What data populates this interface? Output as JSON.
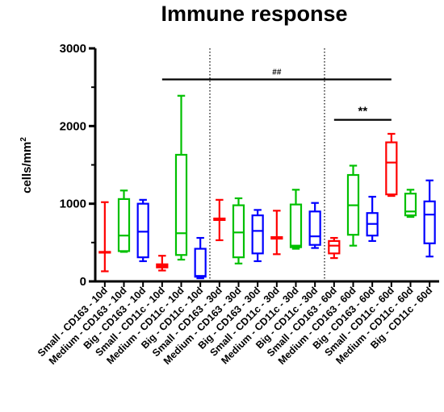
{
  "chart_data": {
    "type": "box",
    "title": "Immune response",
    "xlabel": "",
    "ylabel": "cells/mm",
    "ylabel_superscript": "2",
    "ylim": [
      0,
      3000
    ],
    "yticks": [
      0,
      1000,
      2000,
      3000
    ],
    "grid": false,
    "legend": "none",
    "group_separators_after": [
      5,
      11
    ],
    "colors": {
      "Small": "#ff0000",
      "Medium": "#00c000",
      "Big": "#0000ff"
    },
    "categories": [
      "Small - CD163 - 10d",
      "Medium - CD163 - 10d",
      "Big - CD163 - 10d",
      "Small - CD11c - 10d",
      "Medium - CD11c - 10d",
      "Big - CD11c - 10d",
      "Small - CD163 - 30d",
      "Medium - CD163 - 30d",
      "Big - CD163 - 30d",
      "Small - CD11c - 30d",
      "Medium - CD11c - 30d",
      "Big - CD11c - 30d",
      "Small - CD163 - 60d",
      "Medium - CD163 - 60d",
      "Big - CD163 - 60d",
      "Small - CD11c - 60d",
      "Medium - CD11c - 60d",
      "Big - CD11c - 60d"
    ],
    "boxes": [
      {
        "size": "Small",
        "min": 130,
        "q1": 370,
        "median": 375,
        "q3": 380,
        "max": 1020
      },
      {
        "size": "Medium",
        "min": 380,
        "q1": 390,
        "median": 590,
        "q3": 1060,
        "max": 1170
      },
      {
        "size": "Big",
        "min": 260,
        "q1": 310,
        "median": 640,
        "q3": 1000,
        "max": 1050
      },
      {
        "size": "Small",
        "min": 140,
        "q1": 180,
        "median": 200,
        "q3": 220,
        "max": 330
      },
      {
        "size": "Medium",
        "min": 280,
        "q1": 340,
        "median": 620,
        "q3": 1630,
        "max": 2390
      },
      {
        "size": "Big",
        "min": 40,
        "q1": 60,
        "median": 70,
        "q3": 420,
        "max": 560
      },
      {
        "size": "Small",
        "min": 530,
        "q1": 790,
        "median": 800,
        "q3": 810,
        "max": 1050
      },
      {
        "size": "Medium",
        "min": 230,
        "q1": 310,
        "median": 630,
        "q3": 980,
        "max": 1070
      },
      {
        "size": "Big",
        "min": 260,
        "q1": 360,
        "median": 650,
        "q3": 850,
        "max": 920
      },
      {
        "size": "Small",
        "min": 350,
        "q1": 550,
        "median": 560,
        "q3": 570,
        "max": 910
      },
      {
        "size": "Medium",
        "min": 420,
        "q1": 440,
        "median": 460,
        "q3": 990,
        "max": 1180
      },
      {
        "size": "Big",
        "min": 430,
        "q1": 470,
        "median": 580,
        "q3": 900,
        "max": 1010
      },
      {
        "size": "Small",
        "min": 300,
        "q1": 360,
        "median": 460,
        "q3": 520,
        "max": 560
      },
      {
        "size": "Medium",
        "min": 460,
        "q1": 600,
        "median": 980,
        "q3": 1370,
        "max": 1490
      },
      {
        "size": "Big",
        "min": 520,
        "q1": 590,
        "median": 740,
        "q3": 880,
        "max": 1090
      },
      {
        "size": "Small",
        "min": 1100,
        "q1": 1120,
        "median": 1530,
        "q3": 1790,
        "max": 1900
      },
      {
        "size": "Medium",
        "min": 830,
        "q1": 850,
        "median": 900,
        "q3": 1130,
        "max": 1180
      },
      {
        "size": "Big",
        "min": 320,
        "q1": 490,
        "median": 860,
        "q3": 1030,
        "max": 1300
      }
    ],
    "annotations": [
      {
        "label": "##",
        "from": 3,
        "to": 15,
        "y": 2600
      },
      {
        "label": "**",
        "from": 12,
        "to": 15,
        "y": 2080
      }
    ]
  }
}
